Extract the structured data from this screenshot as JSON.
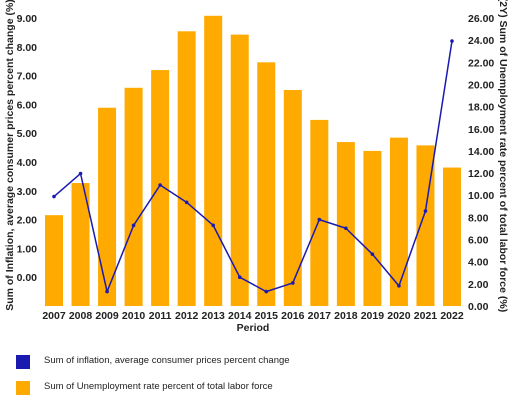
{
  "chart_data": {
    "type": "bar",
    "xlabel": "Period",
    "categories": [
      "2007",
      "2008",
      "2009",
      "2010",
      "2011",
      "2012",
      "2013",
      "2014",
      "2015",
      "2016",
      "2017",
      "2018",
      "2019",
      "2020",
      "2021",
      "2022"
    ],
    "series": [
      {
        "name": "Sum of Unemployment rate percent of total labor force",
        "type": "bar",
        "axis": "right",
        "color": "#FFAA00",
        "values": [
          8.2,
          11.1,
          17.9,
          19.7,
          21.3,
          24.8,
          26.2,
          24.5,
          22.0,
          19.5,
          16.8,
          14.8,
          14.0,
          15.2,
          14.5,
          12.5
        ]
      },
      {
        "name": "Sum of inflation, average consumer prices percent change",
        "type": "line",
        "axis": "left",
        "color": "#1A1AB0",
        "values": [
          2.8,
          3.6,
          -0.5,
          1.8,
          3.2,
          2.6,
          1.8,
          0.0,
          -0.5,
          -0.2,
          2.0,
          1.7,
          0.8,
          -0.3,
          2.3,
          8.2
        ]
      }
    ],
    "y_left": {
      "label": "Sum of Inflation, average consumer prices percent change (%)",
      "min": -1,
      "max": 9,
      "ticks": [
        "0.00",
        "1.00",
        "2.00",
        "3.00",
        "4.00",
        "5.00",
        "6.00",
        "7.00",
        "8.00",
        "9.00"
      ]
    },
    "y_right": {
      "label": "(2Y) Sum of Unemployment rate percent of total labor force (%)",
      "min": 0,
      "max": 26,
      "ticks": [
        "0.00",
        "2.00",
        "4.00",
        "6.00",
        "8.00",
        "10.00",
        "12.00",
        "14.00",
        "16.00",
        "18.00",
        "20.00",
        "22.00",
        "24.00",
        "26.00"
      ]
    },
    "grid": false,
    "legend_position": "bottom-left"
  },
  "legend": {
    "line_label": "Sum of inflation, average consumer prices percent change",
    "bar_label": "Sum of Unemployment rate percent of total labor force",
    "line_color": "#1A1AB0",
    "bar_color": "#FFAA00"
  }
}
